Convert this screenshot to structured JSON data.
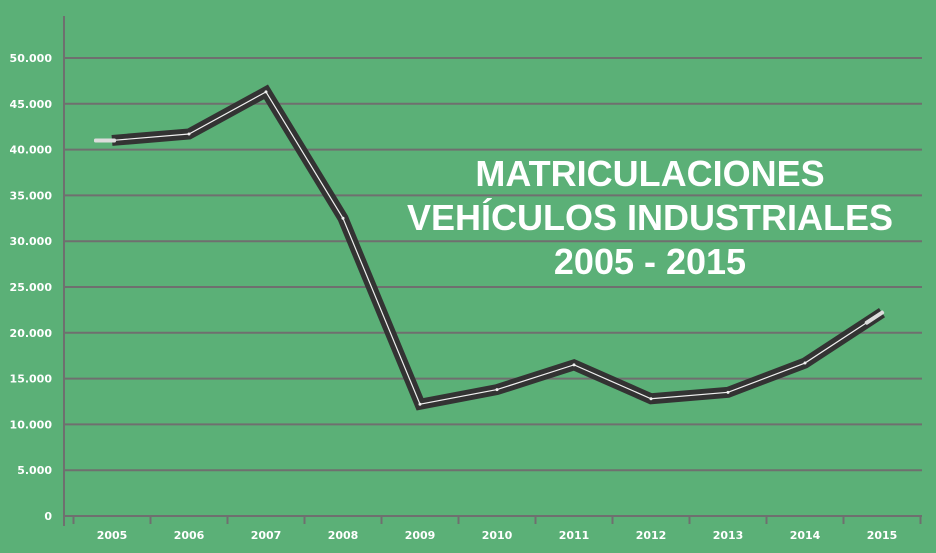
{
  "chart_data": {
    "type": "line",
    "title_lines": [
      "MATRICULACIONES",
      "VEHÍCULOS INDUSTRIALES",
      "2005 - 2015"
    ],
    "xlabel": "",
    "ylabel": "",
    "categories": [
      "2005",
      "2006",
      "2007",
      "2008",
      "2009",
      "2010",
      "2011",
      "2012",
      "2013",
      "2014",
      "2015"
    ],
    "values": [
      41000,
      41700,
      46300,
      32500,
      12200,
      13800,
      16500,
      12800,
      13500,
      16700,
      22200
    ],
    "ylim": [
      0,
      50000
    ],
    "yticks": [
      0,
      5000,
      10000,
      15000,
      20000,
      25000,
      30000,
      35000,
      40000,
      45000,
      50000
    ],
    "ytick_labels": [
      "0",
      "5.000",
      "10.000",
      "15.000",
      "20.000",
      "25.000",
      "30.000",
      "35.000",
      "40.000",
      "45.000",
      "50.000"
    ],
    "grid": true,
    "legend": "none",
    "colors": {
      "background": "#5bb077",
      "grid": "#6f6f6f",
      "road": "#333333",
      "road_center": "#f0f0f0",
      "text": "#ffffff"
    }
  }
}
